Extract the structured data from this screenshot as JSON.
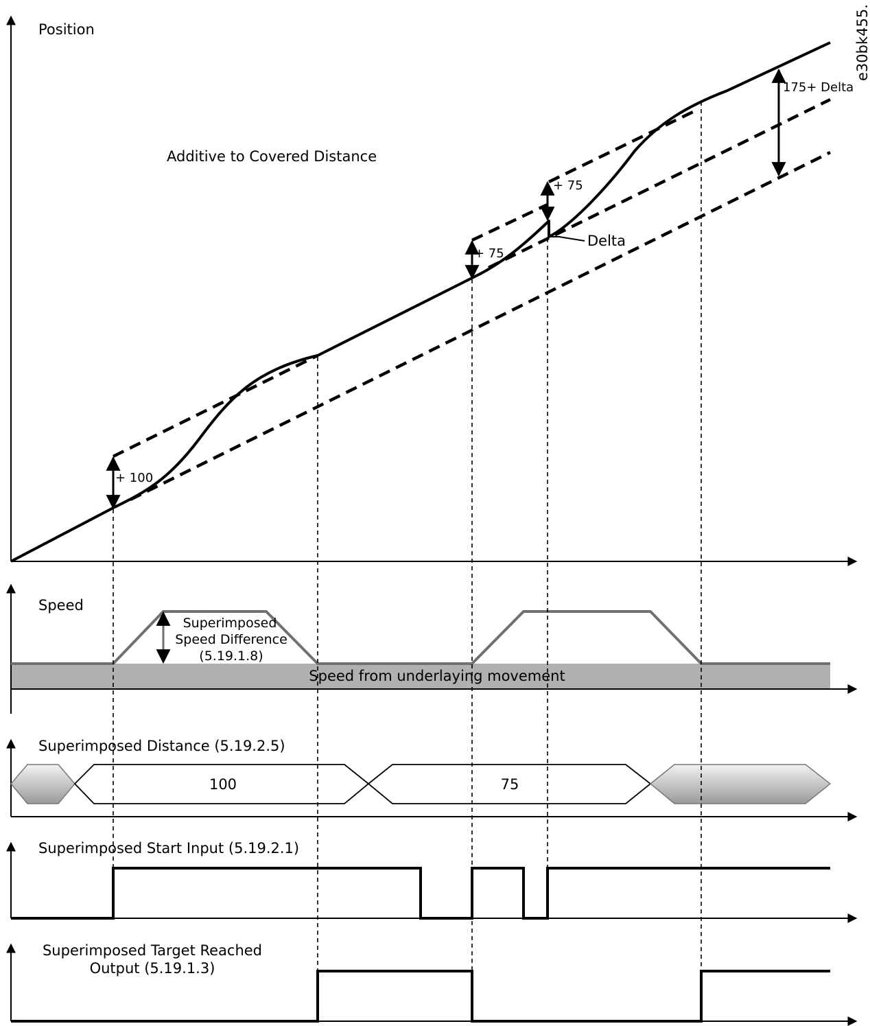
{
  "figure_code": "e30bk455.",
  "position_plot": {
    "axis_label": "Position",
    "mode_label": "Additive to Covered Distance",
    "steps": [
      "+ 100",
      "+ 75",
      "+ 75"
    ],
    "delta_label": "Delta",
    "total_label": "175+ Delta"
  },
  "speed_plot": {
    "axis_label": "Speed",
    "diff_label": [
      "Superimposed",
      "Speed Difference",
      "(5.19.1.8)"
    ],
    "base_label": "Speed from underlaying movement",
    "colors": {
      "ramp": "#707070",
      "base_band": "#b0b0b0"
    }
  },
  "distance_plot": {
    "axis_label": "Superimposed Distance (5.19.2.5)",
    "values": [
      "100",
      "75"
    ]
  },
  "start_plot": {
    "axis_label": "Superimposed Start Input (5.19.2.1)"
  },
  "target_plot": {
    "axis_label": [
      "Superimposed Target Reached",
      "Output (5.19.1.3)"
    ]
  }
}
